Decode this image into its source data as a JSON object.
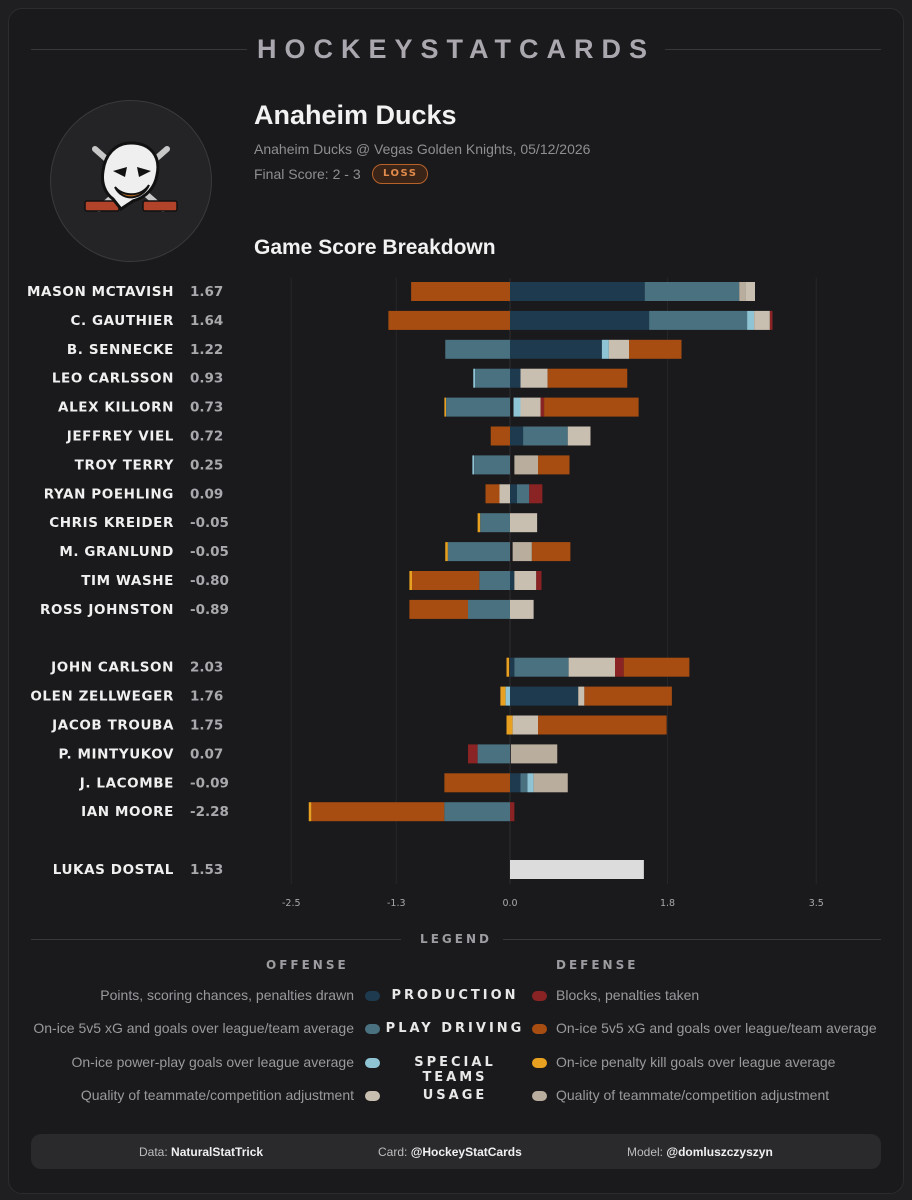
{
  "brand": "HOCKEYSTATCARDS",
  "team": {
    "name": "Anaheim Ducks",
    "game": "Anaheim Ducks @ Vegas Golden Knights, 05/12/2026",
    "final_score": "Final Score: 2 - 3",
    "result": "LOSS",
    "logo": "anaheim-ducks-logo"
  },
  "colors": {
    "production": "#1d3a4f",
    "play_driving": "#4a7180",
    "special_teams": "#8fc4d4",
    "usage_off": "#c9bfb1",
    "blocks": "#8a2323",
    "def_xg": "#a84d12",
    "penalty_kill": "#e8a020",
    "usage_def": "#b9ad9d",
    "goalie": "#dcdcdc"
  },
  "chart_data": {
    "type": "bar",
    "title": "Game Score Breakdown",
    "xlim": [
      -2.5,
      3.5
    ],
    "xticks": [
      -2.5,
      -1.3,
      0.0,
      1.8,
      3.5
    ],
    "xtick_labels": [
      "-2.5",
      "-1.3",
      "0.0",
      "1.8",
      "3.5"
    ],
    "groups": [
      {
        "name": "forwards",
        "players": [
          {
            "name": "MASON MCTAVISH",
            "score": "1.67",
            "segments": [
              [
                "def_xg",
                -1.13,
                0
              ],
              [
                "production",
                0,
                1.54
              ],
              [
                "play_driving",
                1.54,
                2.62
              ],
              [
                "usage_def",
                2.62,
                2.69
              ],
              [
                "usage_off",
                2.69,
                2.8
              ]
            ]
          },
          {
            "name": "C. GAUTHIER",
            "score": "1.64",
            "segments": [
              [
                "def_xg",
                -1.39,
                0
              ],
              [
                "production",
                0,
                1.59
              ],
              [
                "play_driving",
                1.59,
                2.71
              ],
              [
                "special_teams",
                2.71,
                2.79
              ],
              [
                "usage_off",
                2.79,
                2.97
              ],
              [
                "blocks",
                2.97,
                3.0
              ]
            ]
          },
          {
            "name": "B. SENNECKE",
            "score": "1.22",
            "segments": [
              [
                "play_driving",
                -0.74,
                0
              ],
              [
                "production",
                0,
                1.05
              ],
              [
                "special_teams",
                1.05,
                1.13
              ],
              [
                "usage_off",
                1.13,
                1.36
              ],
              [
                "def_xg",
                1.36,
                1.96
              ]
            ]
          },
          {
            "name": "LEO CARLSSON",
            "score": "0.93",
            "segments": [
              [
                "special_teams",
                -0.42,
                -0.4
              ],
              [
                "play_driving",
                -0.4,
                0
              ],
              [
                "production",
                0,
                0.12
              ],
              [
                "usage_off",
                0.12,
                0.43
              ],
              [
                "def_xg",
                0.43,
                1.34
              ]
            ]
          },
          {
            "name": "ALEX KILLORN",
            "score": "0.73",
            "segments": [
              [
                "penalty_kill",
                -0.75,
                -0.73
              ],
              [
                "play_driving",
                -0.73,
                0
              ],
              [
                "special_teams",
                0.04,
                0.12
              ],
              [
                "usage_off",
                0.12,
                0.35
              ],
              [
                "blocks",
                0.35,
                0.39
              ],
              [
                "def_xg",
                0.39,
                1.47
              ]
            ]
          },
          {
            "name": "JEFFREY VIEL",
            "score": "0.72",
            "segments": [
              [
                "def_xg",
                -0.22,
                0
              ],
              [
                "production",
                0,
                0.15
              ],
              [
                "play_driving",
                0.15,
                0.66
              ],
              [
                "usage_off",
                0.66,
                0.92
              ]
            ]
          },
          {
            "name": "TROY TERRY",
            "score": "0.25",
            "segments": [
              [
                "special_teams",
                -0.43,
                -0.41
              ],
              [
                "play_driving",
                -0.41,
                0
              ],
              [
                "usage_def",
                0.05,
                0.32
              ],
              [
                "def_xg",
                0.32,
                0.68
              ]
            ]
          },
          {
            "name": "RYAN POEHLING",
            "score": "0.09",
            "segments": [
              [
                "def_xg",
                -0.28,
                -0.12
              ],
              [
                "usage_off",
                -0.12,
                0
              ],
              [
                "production",
                0,
                0.08
              ],
              [
                "play_driving",
                0.08,
                0.22
              ],
              [
                "blocks",
                0.22,
                0.37
              ]
            ]
          },
          {
            "name": "CHRIS KREIDER",
            "score": "-0.05",
            "segments": [
              [
                "penalty_kill",
                -0.37,
                -0.34
              ],
              [
                "play_driving",
                -0.34,
                0
              ],
              [
                "usage_off",
                0,
                0.31
              ]
            ]
          },
          {
            "name": "M. GRANLUND",
            "score": "-0.05",
            "segments": [
              [
                "penalty_kill",
                -0.74,
                -0.71
              ],
              [
                "play_driving",
                -0.71,
                0
              ],
              [
                "usage_def",
                0.03,
                0.25
              ],
              [
                "def_xg",
                0.25,
                0.69
              ]
            ]
          },
          {
            "name": "TIM WASHE",
            "score": "-0.80",
            "segments": [
              [
                "penalty_kill",
                -1.15,
                -1.12
              ],
              [
                "def_xg",
                -1.12,
                -0.35
              ],
              [
                "play_driving",
                -0.35,
                0
              ],
              [
                "production",
                0,
                0.05
              ],
              [
                "usage_off",
                0.05,
                0.3
              ],
              [
                "blocks",
                0.3,
                0.36
              ]
            ]
          },
          {
            "name": "ROSS JOHNSTON",
            "score": "-0.89",
            "segments": [
              [
                "def_xg",
                -1.15,
                -0.48
              ],
              [
                "play_driving",
                -0.48,
                0
              ],
              [
                "usage_off",
                0,
                0.27
              ]
            ]
          }
        ]
      },
      {
        "name": "defense",
        "players": [
          {
            "name": "JOHN CARLSON",
            "score": "2.03",
            "segments": [
              [
                "penalty_kill",
                -0.04,
                -0.01
              ],
              [
                "production",
                0,
                0.05
              ],
              [
                "play_driving",
                0.05,
                0.67
              ],
              [
                "usage_off",
                0.67,
                1.2
              ],
              [
                "blocks",
                1.2,
                1.3
              ],
              [
                "def_xg",
                1.3,
                2.05
              ]
            ]
          },
          {
            "name": "OLEN ZELLWEGER",
            "score": "1.76",
            "segments": [
              [
                "penalty_kill",
                -0.11,
                -0.05
              ],
              [
                "special_teams",
                -0.05,
                0
              ],
              [
                "production",
                0,
                0.78
              ],
              [
                "usage_off",
                0.78,
                0.85
              ],
              [
                "def_xg",
                0.85,
                1.85
              ]
            ]
          },
          {
            "name": "JACOB TROUBA",
            "score": "1.75",
            "segments": [
              [
                "penalty_kill",
                -0.04,
                0
              ],
              [
                "penalty_kill",
                0,
                0.03
              ],
              [
                "usage_off",
                0.03,
                0.32
              ],
              [
                "def_xg",
                0.32,
                1.79
              ]
            ]
          },
          {
            "name": "P. MINTYUKOV",
            "score": "0.07",
            "segments": [
              [
                "blocks",
                -0.48,
                -0.37
              ],
              [
                "play_driving",
                -0.37,
                0
              ],
              [
                "usage_def",
                0.01,
                0.54
              ]
            ]
          },
          {
            "name": "J. LACOMBE",
            "score": "-0.09",
            "segments": [
              [
                "def_xg",
                -0.75,
                0
              ],
              [
                "production",
                0,
                0.12
              ],
              [
                "play_driving",
                0.12,
                0.2
              ],
              [
                "special_teams",
                0.2,
                0.27
              ],
              [
                "usage_def",
                0.27,
                0.66
              ]
            ]
          },
          {
            "name": "IAN MOORE",
            "score": "-2.28",
            "segments": [
              [
                "penalty_kill",
                -2.3,
                -2.27
              ],
              [
                "def_xg",
                -2.27,
                -0.75
              ],
              [
                "play_driving",
                -0.75,
                0
              ],
              [
                "blocks",
                0,
                0.05
              ]
            ]
          }
        ]
      },
      {
        "name": "goalie",
        "players": [
          {
            "name": "LUKAS DOSTAL",
            "score": "1.53",
            "segments": [
              [
                "goalie",
                0,
                1.53
              ]
            ]
          }
        ]
      }
    ]
  },
  "legend": {
    "title": "LEGEND",
    "offense_head": "OFFENSE",
    "defense_head": "DEFENSE",
    "rows": [
      {
        "category": "PRODUCTION",
        "offense": "Points, scoring chances, penalties drawn",
        "defense": "Blocks, penalties taken",
        "off_color": "production",
        "def_color": "blocks"
      },
      {
        "category": "PLAY DRIVING",
        "offense": "On-ice 5v5 xG and goals over league/team average",
        "defense": "On-ice 5v5 xG and goals over league/team average",
        "off_color": "play_driving",
        "def_color": "def_xg"
      },
      {
        "category": "SPECIAL TEAMS",
        "offense": "On-ice power-play goals over league average",
        "defense": "On-ice penalty kill goals over league average",
        "off_color": "special_teams",
        "def_color": "penalty_kill"
      },
      {
        "category": "USAGE",
        "offense": "Quality of teammate/competition adjustment",
        "defense": "Quality of teammate/competition adjustment",
        "off_color": "usage_off",
        "def_color": "usage_def"
      }
    ]
  },
  "footer": {
    "data_label": "Data:",
    "data_value": "NaturalStatTrick",
    "card_label": "Card:",
    "card_value": "@HockeyStatCards",
    "model_label": "Model:",
    "model_value": "@domluszczyszyn"
  }
}
